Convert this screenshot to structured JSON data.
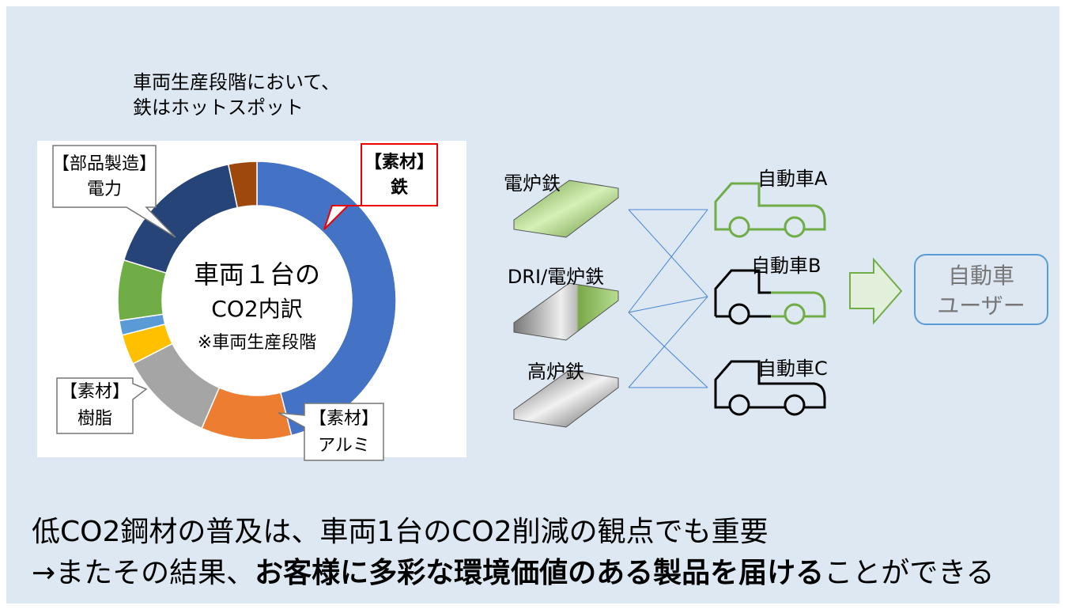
{
  "heading": [
    "車両生産段階において、",
    "鉄はホットスポット"
  ],
  "chart_data": {
    "type": "pie",
    "center_text": [
      "車両１台の",
      "CO2内訳",
      "※車両生産段階"
    ],
    "categories": [
      null,
      null,
      null,
      null,
      null,
      null,
      null,
      null
    ],
    "values": [
      46,
      10.5,
      11,
      3.5,
      1.7,
      7,
      17,
      3.3
    ],
    "colors": [
      "#4472c4",
      "#ed7d31",
      "#a5a5a5",
      "#ffc000",
      "#5b9bd5",
      "#70ad47",
      "#264478",
      "#9e480e"
    ]
  },
  "callouts": {
    "steel": [
      "【素材】",
      "鉄"
    ],
    "parts": [
      "【部品製造】",
      "電力"
    ],
    "resin": [
      "【素材】",
      "樹脂"
    ],
    "aluminum": [
      "【素材】",
      "アルミ"
    ]
  },
  "materials": [
    "電炉鉄",
    "DRI/電炉鉄",
    "高炉鉄"
  ],
  "cars": [
    "自動車A",
    "自動車B",
    "自動車C"
  ],
  "user": [
    "自動車",
    "ユーザー"
  ],
  "footer": {
    "line1": "低CO2鋼材の普及は、車両1台のCO2削減の観点でも重要",
    "line2_start": "→またその結果、",
    "line2_bold": "お客様に多彩な環境価値のある製品を届ける",
    "line2_end": "ことができる"
  }
}
